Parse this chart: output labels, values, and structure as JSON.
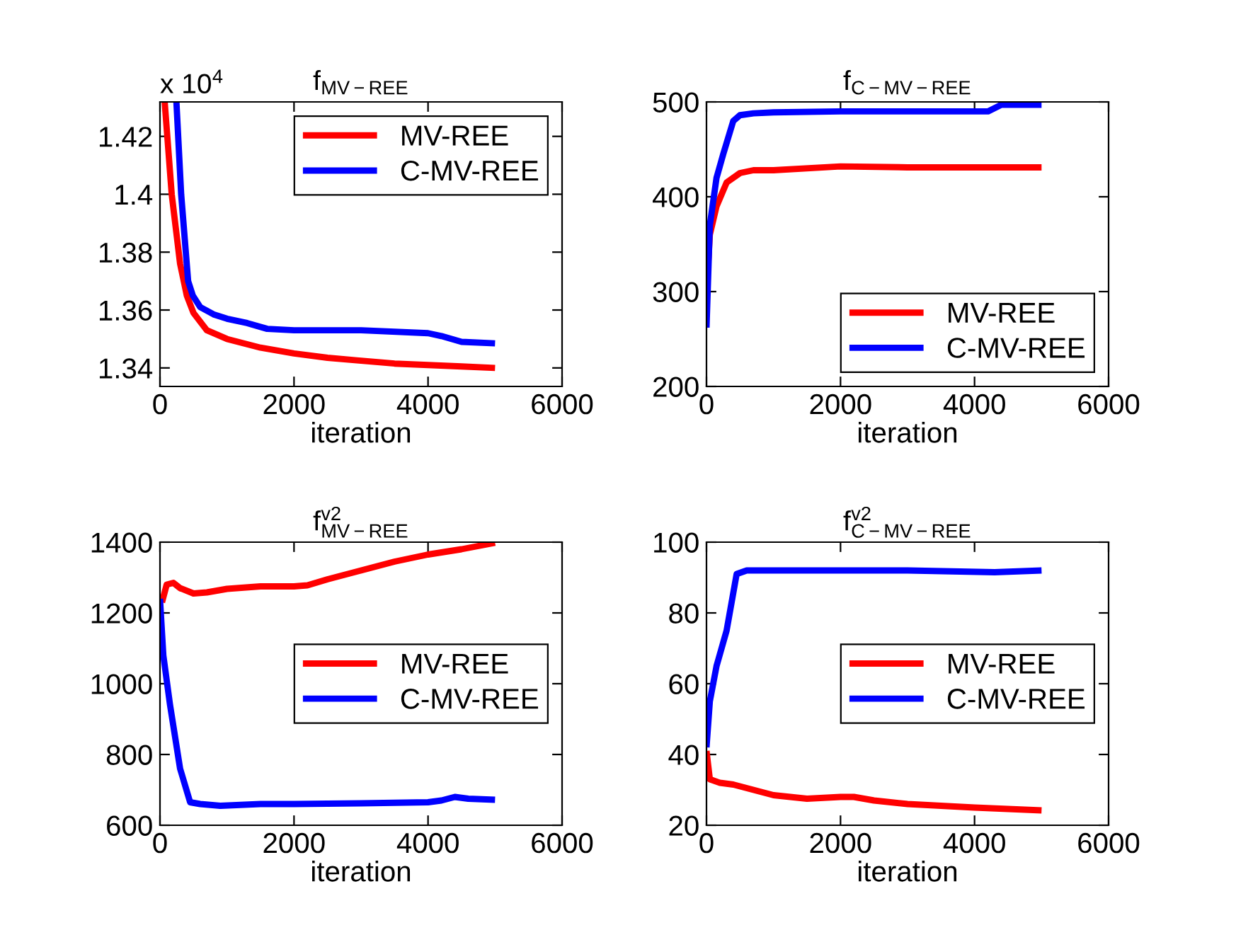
{
  "chart_data": [
    {
      "type": "line",
      "title": "f$_{MV−REE}$",
      "xlabel": "iteration",
      "annotations": [
        "x 10$^{4}$"
      ],
      "xlim": [
        0,
        6000
      ],
      "xticks": [
        0,
        2000,
        4000,
        6000
      ],
      "ylim": [
        1.3336,
        1.4319
      ],
      "yticks": [
        1.34,
        1.36,
        1.38,
        1.4,
        1.42
      ],
      "legend": "top right",
      "grid": false,
      "series": [
        {
          "name": "MV-REE",
          "color": "#ff0000",
          "x": [
            70,
            175,
            300,
            400,
            500,
            700,
            1000,
            1500,
            2000,
            2500,
            3000,
            3500,
            4000,
            4500,
            5000
          ],
          "values": [
            1.4319,
            1.4,
            1.376,
            1.365,
            1.359,
            1.353,
            1.35,
            1.347,
            1.345,
            1.3435,
            1.3425,
            1.3415,
            1.341,
            1.3405,
            1.34
          ]
        },
        {
          "name": "C-MV-REE",
          "color": "#0000ff",
          "x": [
            245,
            316,
            420,
            490,
            600,
            800,
            1000,
            1300,
            1600,
            2000,
            3000,
            4000,
            4200,
            4500,
            5000
          ],
          "values": [
            1.4319,
            1.4,
            1.37,
            1.365,
            1.361,
            1.3585,
            1.357,
            1.3555,
            1.3535,
            1.353,
            1.353,
            1.352,
            1.351,
            1.349,
            1.3485
          ]
        }
      ]
    },
    {
      "type": "line",
      "title": "f$_{C−MV−REE}$",
      "xlabel": "iteration",
      "xlim": [
        0,
        6000
      ],
      "xticks": [
        0,
        2000,
        4000,
        6000
      ],
      "ylim": [
        200,
        500
      ],
      "yticks": [
        200,
        300,
        400,
        500
      ],
      "legend": "bottom right",
      "grid": false,
      "series": [
        {
          "name": "MV-REE",
          "color": "#ff0000",
          "x": [
            0,
            50,
            150,
            300,
            500,
            700,
            1000,
            2000,
            3000,
            4000,
            5000
          ],
          "values": [
            300,
            360,
            390,
            415,
            425,
            428,
            428,
            432,
            431,
            431,
            431
          ]
        },
        {
          "name": "C-MV-REE",
          "color": "#0000ff",
          "x": [
            0,
            50,
            150,
            250,
            400,
            500,
            700,
            1000,
            2000,
            4000,
            4200,
            4400,
            5000
          ],
          "values": [
            262,
            370,
            420,
            445,
            480,
            486,
            488,
            489,
            490,
            490,
            490,
            497,
            497
          ]
        }
      ]
    },
    {
      "type": "line",
      "title": "f$^{v2}$$_{MV−REE}$",
      "xlabel": "iteration",
      "xlim": [
        0,
        6000
      ],
      "xticks": [
        0,
        2000,
        4000,
        6000
      ],
      "ylim": [
        600,
        1400
      ],
      "yticks": [
        600,
        800,
        1000,
        1200,
        1400
      ],
      "legend": "right",
      "grid": false,
      "series": [
        {
          "name": "MV-REE",
          "color": "#ff0000",
          "x": [
            30,
            100,
            200,
            300,
            500,
            700,
            1000,
            1500,
            2000,
            2200,
            2500,
            3000,
            3500,
            4000,
            4500,
            5000
          ],
          "values": [
            1230,
            1280,
            1285,
            1270,
            1255,
            1258,
            1268,
            1275,
            1275,
            1278,
            1295,
            1320,
            1345,
            1365,
            1380,
            1398
          ]
        },
        {
          "name": "C-MV-REE",
          "color": "#0000ff",
          "x": [
            0,
            50,
            150,
            300,
            450,
            600,
            900,
            1500,
            2000,
            3000,
            4000,
            4200,
            4400,
            4600,
            5000
          ],
          "values": [
            1240,
            1080,
            940,
            760,
            665,
            660,
            655,
            660,
            660,
            662,
            665,
            670,
            680,
            675,
            672
          ]
        }
      ]
    },
    {
      "type": "line",
      "title": "f$^{v2}$$_{C−MV−REE}$",
      "xlabel": "iteration",
      "xlim": [
        0,
        6000
      ],
      "xticks": [
        0,
        2000,
        4000,
        6000
      ],
      "ylim": [
        20,
        100
      ],
      "yticks": [
        20,
        40,
        60,
        80,
        100
      ],
      "legend": "right",
      "grid": false,
      "series": [
        {
          "name": "MV-REE",
          "color": "#ff0000",
          "x": [
            0,
            50,
            200,
            400,
            700,
            1000,
            1500,
            2000,
            2200,
            2500,
            3000,
            4000,
            5000
          ],
          "values": [
            41,
            33,
            32,
            31.5,
            30,
            28.5,
            27.5,
            28,
            28,
            27,
            26,
            25,
            24.2
          ]
        },
        {
          "name": "C-MV-REE",
          "color": "#0000ff",
          "x": [
            0,
            50,
            150,
            300,
            450,
            600,
            1000,
            3000,
            4300,
            5000
          ],
          "values": [
            42,
            55,
            65,
            75,
            91,
            92,
            92,
            92,
            91.5,
            92
          ]
        }
      ]
    }
  ]
}
